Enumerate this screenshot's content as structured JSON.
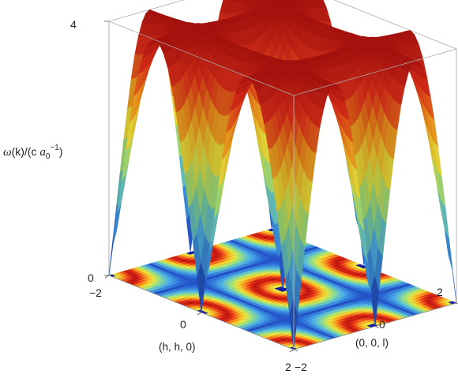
{
  "chart_data": {
    "type": "surface3d",
    "title": "",
    "zlabel": "ω(k)/(c  a₀⁻¹)",
    "zlabel_parts": {
      "omega": "ω",
      "k": "(k)/(c  ",
      "a": "a",
      "sub": "0",
      "sup": "−1",
      "close": ")"
    },
    "xlabel": "(h, h, 0)",
    "ylabel": "(0, 0, l)",
    "xlim": [
      -2,
      2
    ],
    "ylim": [
      -2,
      2
    ],
    "zlim": [
      0,
      4
    ],
    "xticks": [
      "−2",
      "0",
      "2"
    ],
    "yticks": [
      "−2",
      "0",
      "2"
    ],
    "zticks": [
      "0",
      "4"
    ],
    "surface_model": "omega = 4*sqrt(1 - |cos(pi*h/2)*cos(pi*l/2)|^2) style dispersion with zeros at (±2,±2),(0,0),(±2,0),(0,±2)",
    "colormap": [
      "#1a1aa0",
      "#2a6cd6",
      "#4fb3e8",
      "#8fe08a",
      "#f0e63a",
      "#f79a1e",
      "#e8301a",
      "#b8140f"
    ],
    "floor_contour": true,
    "box": true
  }
}
